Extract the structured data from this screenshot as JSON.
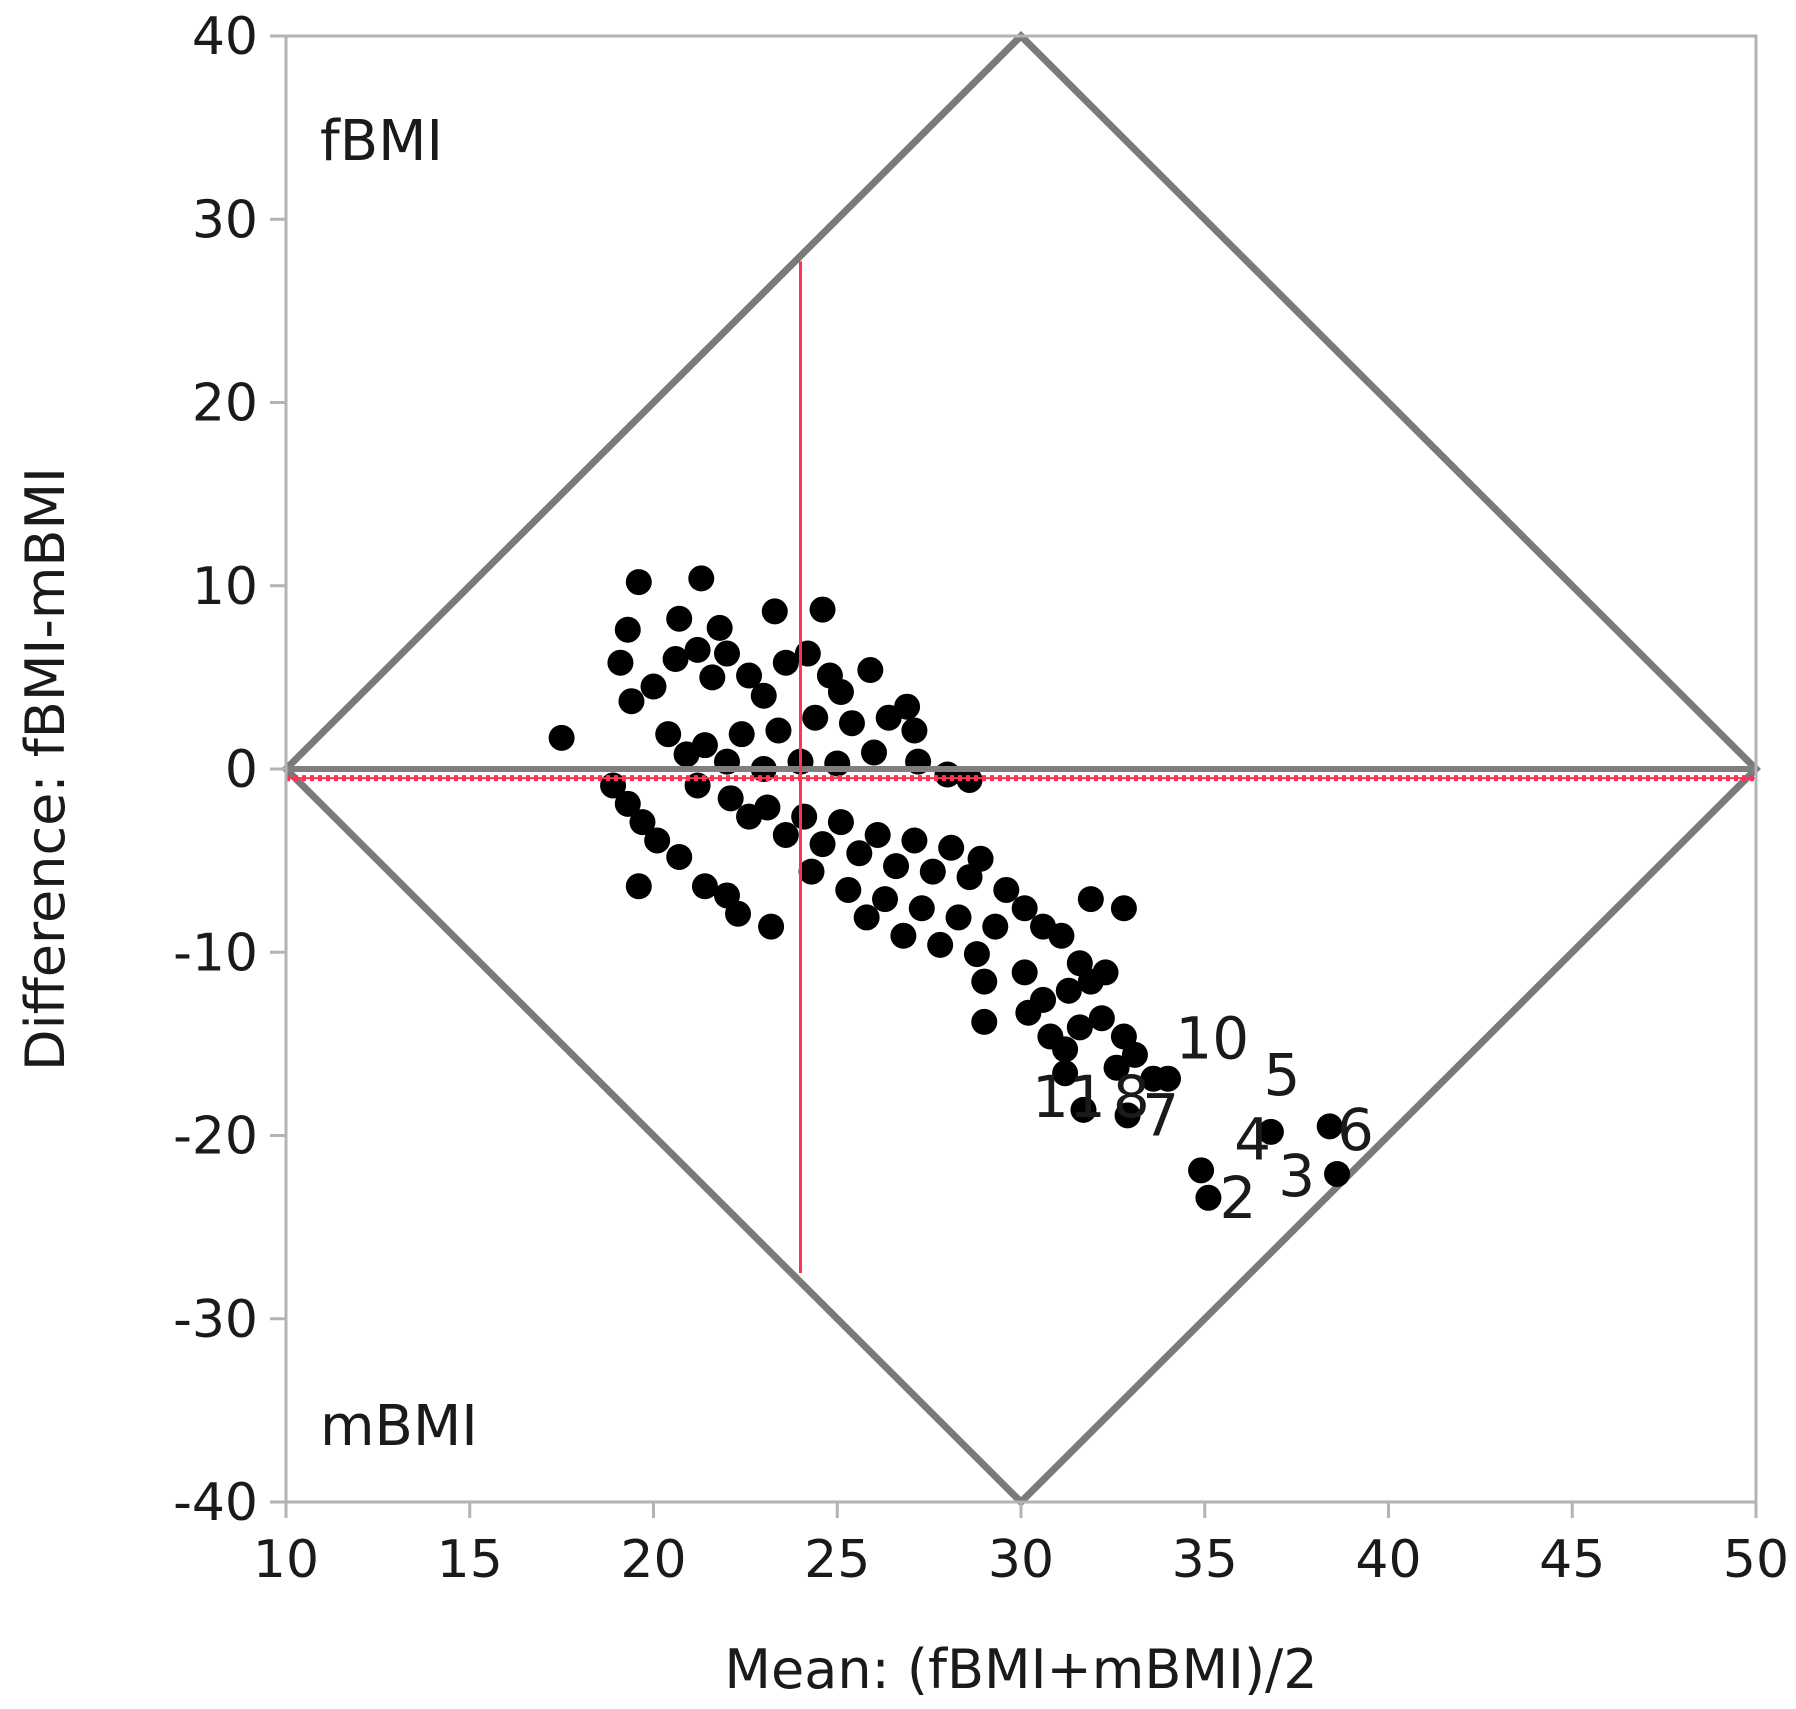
{
  "chart_data": {
    "type": "scatter",
    "title": "",
    "xlabel": "Mean: (fBMI+mBMI)/2",
    "ylabel": "Difference: fBMI-mBMI",
    "xlim": [
      10,
      50
    ],
    "ylim": [
      -40,
      40
    ],
    "xticks": [
      10,
      15,
      20,
      25,
      30,
      35,
      40,
      45,
      50
    ],
    "yticks": [
      40,
      30,
      20,
      10,
      0,
      -10,
      -20,
      -30,
      -40
    ],
    "grid": false,
    "corner_labels": {
      "top_left": "fBMI",
      "bottom_left": "mBMI"
    },
    "reference_lines": {
      "zero_line": {
        "y": 0,
        "color": "#7f7f7f"
      },
      "mean_difference": {
        "y": -0.5,
        "color": "#ff3355"
      },
      "mean_x": {
        "x": 24,
        "y_range": [
          -27.5,
          27.7
        ],
        "color": "#ff3355"
      }
    },
    "diamond": {
      "vertices": [
        [
          10,
          0
        ],
        [
          30,
          40
        ],
        [
          50,
          0
        ],
        [
          30,
          -40
        ]
      ],
      "color": "#7a7a7a"
    },
    "point_color": "#000000",
    "series": [
      {
        "points": [
          [
            17.5,
            1.7
          ],
          [
            19.6,
            10.2
          ],
          [
            21.3,
            10.4
          ],
          [
            23.3,
            8.6
          ],
          [
            24.6,
            8.7
          ],
          [
            20.7,
            8.2
          ],
          [
            19.3,
            7.6
          ],
          [
            21.8,
            7.7
          ],
          [
            19.1,
            5.8
          ],
          [
            19.4,
            3.7
          ],
          [
            20.0,
            4.5
          ],
          [
            20.6,
            6.0
          ],
          [
            21.2,
            6.5
          ],
          [
            21.6,
            5.0
          ],
          [
            22.0,
            6.3
          ],
          [
            22.6,
            5.1
          ],
          [
            23.0,
            4.0
          ],
          [
            23.6,
            5.8
          ],
          [
            24.2,
            6.3
          ],
          [
            24.8,
            5.1
          ],
          [
            25.1,
            4.2
          ],
          [
            25.9,
            5.4
          ],
          [
            26.9,
            3.4
          ],
          [
            27.1,
            2.1
          ],
          [
            26.4,
            2.8
          ],
          [
            25.4,
            2.5
          ],
          [
            24.4,
            2.8
          ],
          [
            23.4,
            2.1
          ],
          [
            22.4,
            1.9
          ],
          [
            21.4,
            1.3
          ],
          [
            20.9,
            0.8
          ],
          [
            20.4,
            1.9
          ],
          [
            22.0,
            0.4
          ],
          [
            23.0,
            0.0
          ],
          [
            24.0,
            0.4
          ],
          [
            25.0,
            0.3
          ],
          [
            26.0,
            0.9
          ],
          [
            27.2,
            0.4
          ],
          [
            28.0,
            -0.3
          ],
          [
            28.6,
            -0.6
          ],
          [
            18.9,
            -0.9
          ],
          [
            19.3,
            -1.9
          ],
          [
            19.7,
            -2.9
          ],
          [
            20.1,
            -3.9
          ],
          [
            20.7,
            -4.8
          ],
          [
            19.6,
            -6.4
          ],
          [
            21.4,
            -6.4
          ],
          [
            22.0,
            -6.9
          ],
          [
            22.3,
            -7.9
          ],
          [
            23.2,
            -8.6
          ],
          [
            21.2,
            -0.9
          ],
          [
            22.1,
            -1.6
          ],
          [
            23.1,
            -2.1
          ],
          [
            24.1,
            -2.6
          ],
          [
            25.1,
            -2.9
          ],
          [
            26.1,
            -3.6
          ],
          [
            27.1,
            -3.9
          ],
          [
            28.1,
            -4.3
          ],
          [
            28.9,
            -4.9
          ],
          [
            22.6,
            -2.6
          ],
          [
            23.6,
            -3.6
          ],
          [
            24.6,
            -4.1
          ],
          [
            25.6,
            -4.6
          ],
          [
            26.6,
            -5.3
          ],
          [
            27.6,
            -5.6
          ],
          [
            28.6,
            -5.9
          ],
          [
            24.3,
            -5.6
          ],
          [
            25.3,
            -6.6
          ],
          [
            26.3,
            -7.1
          ],
          [
            27.3,
            -7.6
          ],
          [
            28.3,
            -8.1
          ],
          [
            29.3,
            -8.6
          ],
          [
            25.8,
            -8.1
          ],
          [
            26.8,
            -9.1
          ],
          [
            27.8,
            -9.6
          ],
          [
            28.8,
            -10.1
          ],
          [
            29.6,
            -6.6
          ],
          [
            30.1,
            -7.6
          ],
          [
            30.6,
            -8.6
          ],
          [
            31.1,
            -9.1
          ],
          [
            31.6,
            -10.6
          ],
          [
            29.0,
            -11.6
          ],
          [
            30.1,
            -11.1
          ],
          [
            30.6,
            -12.6
          ],
          [
            31.3,
            -12.1
          ],
          [
            31.9,
            -11.6
          ],
          [
            32.3,
            -11.1
          ],
          [
            31.9,
            -7.1
          ],
          [
            32.8,
            -7.6
          ],
          [
            29.0,
            -13.8
          ],
          [
            30.2,
            -13.3
          ],
          [
            30.8,
            -14.6
          ],
          [
            31.2,
            -15.3
          ],
          [
            31.6,
            -14.1
          ],
          [
            32.2,
            -13.6
          ],
          [
            32.8,
            -14.6
          ],
          [
            31.2,
            -16.6
          ],
          [
            32.6,
            -16.3
          ],
          [
            33.1,
            -15.6
          ],
          [
            33.6,
            -16.9
          ],
          [
            34.0,
            -16.9
          ],
          [
            31.7,
            -18.6
          ],
          [
            32.9,
            -18.9
          ],
          [
            34.9,
            -21.9
          ],
          [
            35.1,
            -23.4
          ],
          [
            36.8,
            -19.8
          ],
          [
            38.4,
            -19.5
          ],
          [
            38.6,
            -22.1
          ]
        ]
      }
    ],
    "point_labels": [
      {
        "text": "10",
        "x": 34.2,
        "y": -15.8
      },
      {
        "text": "5",
        "x": 36.6,
        "y": -17.8
      },
      {
        "text": "6",
        "x": 38.6,
        "y": -20.8
      },
      {
        "text": "4",
        "x": 35.8,
        "y": -21.3
      },
      {
        "text": "3",
        "x": 37.0,
        "y": -23.3
      },
      {
        "text": "2",
        "x": 35.4,
        "y": -24.5
      },
      {
        "text": "11",
        "x": 30.3,
        "y": -19.0
      },
      {
        "text": "8",
        "x": 32.5,
        "y": -19.0
      },
      {
        "text": "7",
        "x": 33.3,
        "y": -20.0
      }
    ]
  }
}
